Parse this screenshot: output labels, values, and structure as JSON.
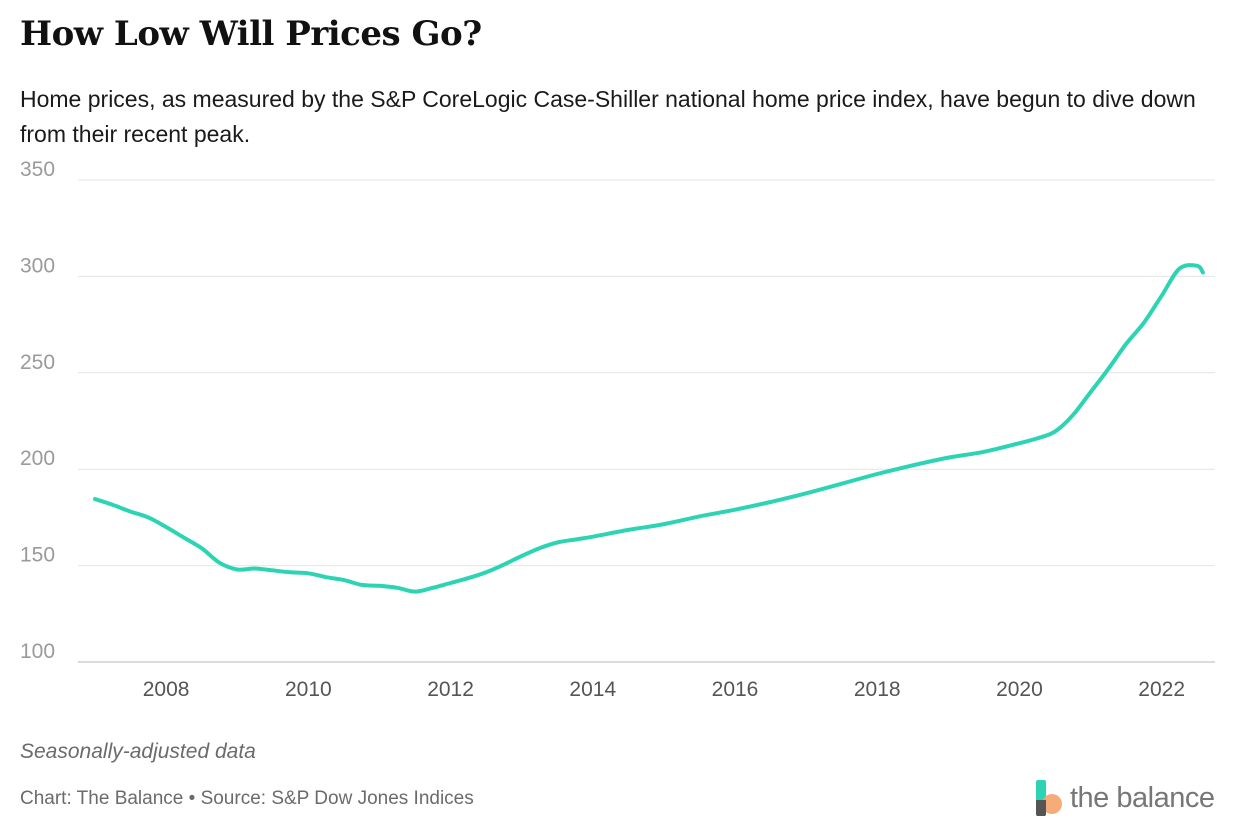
{
  "title": "How Low Will Prices Go?",
  "subtitle": "Home prices, as measured by the S&P CoreLogic Case-Shiller national home price index, have begun to dive down from their recent peak.",
  "note": "Seasonally-adjusted data",
  "credit": "Chart: The Balance • Source: S&P Dow Jones Indices",
  "logo_text": "the balance",
  "colors": {
    "line": "#2dd4b4",
    "grid": "#e4e4e4",
    "logo_teal": "#2dd4b4",
    "logo_orange": "#f5a36a"
  },
  "chart_data": {
    "type": "line",
    "title": "How Low Will Prices Go?",
    "xlabel": "",
    "ylabel": "",
    "xlim": [
      2007.0,
      2022.75
    ],
    "ylim": [
      100,
      350
    ],
    "yticks": [
      100,
      150,
      200,
      250,
      300,
      350
    ],
    "xticks": [
      2008,
      2010,
      2012,
      2014,
      2016,
      2018,
      2020,
      2022
    ],
    "ytick_labels": [
      "100",
      "150",
      "200",
      "250",
      "300",
      "350"
    ],
    "xtick_labels": [
      "2008",
      "2010",
      "2012",
      "2014",
      "2016",
      "2018",
      "2020",
      "2022"
    ],
    "grid": true,
    "series": [
      {
        "name": "S&P CoreLogic Case-Shiller U.S. National Home Price Index",
        "x": [
          2007.0,
          2007.25,
          2007.5,
          2007.75,
          2008.0,
          2008.25,
          2008.5,
          2008.75,
          2009.0,
          2009.25,
          2009.5,
          2009.75,
          2010.0,
          2010.25,
          2010.5,
          2010.75,
          2011.0,
          2011.25,
          2011.5,
          2011.75,
          2012.0,
          2012.25,
          2012.5,
          2012.75,
          2013.0,
          2013.25,
          2013.5,
          2013.75,
          2014.0,
          2014.5,
          2015.0,
          2015.5,
          2016.0,
          2016.5,
          2017.0,
          2017.5,
          2018.0,
          2018.5,
          2019.0,
          2019.5,
          2020.0,
          2020.25,
          2020.5,
          2020.75,
          2021.0,
          2021.25,
          2021.5,
          2021.75,
          2022.0,
          2022.25,
          2022.5,
          2022.58
        ],
        "values": [
          184.5,
          181.5,
          178.0,
          175.0,
          170.0,
          164.5,
          159.0,
          151.5,
          148.0,
          148.5,
          147.5,
          146.5,
          146.0,
          144.0,
          142.5,
          140.0,
          139.5,
          138.5,
          136.5,
          138.5,
          141.0,
          143.5,
          146.5,
          150.5,
          155.0,
          159.0,
          162.0,
          163.5,
          165.0,
          168.5,
          171.5,
          175.5,
          179.0,
          183.0,
          187.5,
          192.5,
          197.5,
          202.0,
          206.0,
          209.0,
          213.5,
          216.0,
          219.5,
          228.0,
          240.0,
          252.0,
          265.0,
          276.0,
          290.0,
          304.0,
          305.5,
          302.0
        ]
      }
    ]
  }
}
